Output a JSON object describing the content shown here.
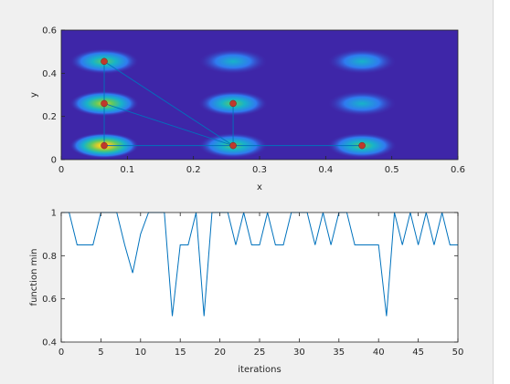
{
  "colors": {
    "background": "#f0f0f0",
    "heatmap_base": "#3e26a8",
    "line": "#0072bd",
    "marker": "#c0392b",
    "axis": "#262626"
  },
  "chart_data": [
    {
      "type": "heatmap",
      "title": "",
      "xlabel": "x",
      "ylabel": "y",
      "xlim": [
        0,
        0.6
      ],
      "ylim": [
        0,
        0.6
      ],
      "xticks": [
        "0",
        "0.1",
        "0.2",
        "0.3",
        "0.4",
        "0.5",
        "0.6"
      ],
      "yticks": [
        "0",
        "0.2",
        "0.4",
        "0.6"
      ],
      "peaks": [
        {
          "x": 0.065,
          "y": 0.065,
          "amplitude": 1.0
        },
        {
          "x": 0.26,
          "y": 0.065,
          "amplitude": 0.75
        },
        {
          "x": 0.455,
          "y": 0.065,
          "amplitude": 0.6
        },
        {
          "x": 0.065,
          "y": 0.26,
          "amplitude": 0.85
        },
        {
          "x": 0.26,
          "y": 0.26,
          "amplitude": 0.65
        },
        {
          "x": 0.455,
          "y": 0.26,
          "amplitude": 0.45
        },
        {
          "x": 0.065,
          "y": 0.455,
          "amplitude": 0.6
        },
        {
          "x": 0.26,
          "y": 0.455,
          "amplitude": 0.5
        },
        {
          "x": 0.455,
          "y": 0.455,
          "amplitude": 0.4
        }
      ],
      "path_segments": [
        [
          [
            0.065,
            0.455
          ],
          [
            0.065,
            0.26
          ]
        ],
        [
          [
            0.065,
            0.26
          ],
          [
            0.065,
            0.065
          ]
        ],
        [
          [
            0.065,
            0.065
          ],
          [
            0.455,
            0.065
          ]
        ],
        [
          [
            0.065,
            0.455
          ],
          [
            0.26,
            0.065
          ]
        ],
        [
          [
            0.065,
            0.26
          ],
          [
            0.26,
            0.065
          ]
        ],
        [
          [
            0.26,
            0.26
          ],
          [
            0.26,
            0.065
          ]
        ]
      ],
      "markers": [
        {
          "x": 0.065,
          "y": 0.455
        },
        {
          "x": 0.065,
          "y": 0.26
        },
        {
          "x": 0.065,
          "y": 0.065
        },
        {
          "x": 0.26,
          "y": 0.26
        },
        {
          "x": 0.26,
          "y": 0.065
        },
        {
          "x": 0.455,
          "y": 0.065
        }
      ]
    },
    {
      "type": "line",
      "title": "",
      "xlabel": "iterations",
      "ylabel": "function min",
      "xlim": [
        0,
        50
      ],
      "ylim": [
        0.4,
        1
      ],
      "xticks": [
        "0",
        "5",
        "10",
        "15",
        "20",
        "25",
        "30",
        "35",
        "40",
        "45",
        "50"
      ],
      "yticks": [
        "0.4",
        "0.6",
        "0.8",
        "1"
      ],
      "x": [
        0,
        1,
        2,
        3,
        4,
        5,
        6,
        7,
        8,
        9,
        10,
        11,
        12,
        13,
        14,
        15,
        16,
        17,
        18,
        19,
        20,
        21,
        22,
        23,
        24,
        25,
        26,
        27,
        28,
        29,
        30,
        31,
        32,
        33,
        34,
        35,
        36,
        37,
        38,
        39,
        40,
        41,
        42,
        43,
        44,
        45,
        46,
        47,
        48,
        49,
        50
      ],
      "values": [
        1.0,
        1.0,
        0.85,
        0.85,
        0.85,
        1.0,
        1.0,
        1.0,
        0.85,
        0.72,
        0.9,
        1.0,
        1.0,
        1.0,
        0.52,
        0.85,
        0.85,
        1.0,
        0.52,
        1.0,
        1.0,
        1.0,
        0.85,
        1.0,
        0.85,
        0.85,
        1.0,
        0.85,
        0.85,
        1.0,
        1.0,
        1.0,
        0.85,
        1.0,
        0.85,
        1.0,
        1.0,
        0.85,
        0.85,
        0.85,
        0.85,
        0.52,
        1.0,
        0.85,
        1.0,
        0.85,
        1.0,
        0.85,
        1.0,
        0.85,
        0.85
      ]
    }
  ]
}
